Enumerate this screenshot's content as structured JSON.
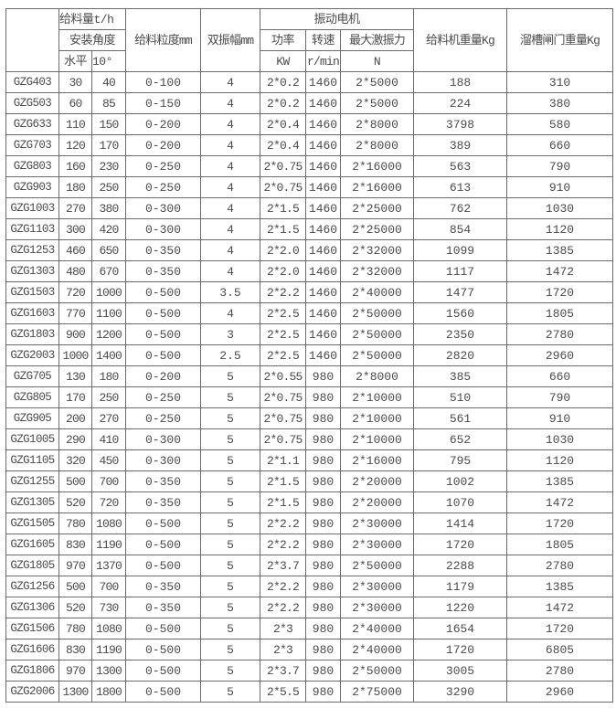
{
  "header": {
    "corner": "",
    "feed_rate": "给料量t/h",
    "install_angle": "安装角度",
    "horizontal": "水平",
    "ten_deg": "10°",
    "feed_size": "给料粒度mm",
    "amplitude": "双振幅mm",
    "motor": "振动电机",
    "power": "功率",
    "power_unit": "KW",
    "speed": "转速",
    "speed_unit": "r/min",
    "force": "最大激振力",
    "force_unit": "N",
    "feeder_weight": "给料机重量Kg",
    "gate_weight": "溜槽闸门重量Kg"
  },
  "rows": [
    [
      "GZG403",
      "30",
      "40",
      "0-100",
      "4",
      "2*0.2",
      "1460",
      "2*5000",
      "188",
      "310"
    ],
    [
      "GZG503",
      "60",
      "85",
      "0-150",
      "4",
      "2*0.2",
      "1460",
      "2*5000",
      "224",
      "380"
    ],
    [
      "GZG633",
      "110",
      "150",
      "0-200",
      "4",
      "2*0.4",
      "1460",
      "2*8000",
      "3798",
      "580"
    ],
    [
      "GZG703",
      "120",
      "170",
      "0-200",
      "4",
      "2*0.4",
      "1460",
      "2*8000",
      "389",
      "660"
    ],
    [
      "GZG803",
      "160",
      "230",
      "0-250",
      "4",
      "2*0.75",
      "1460",
      "2*16000",
      "563",
      "790"
    ],
    [
      "GZG903",
      "180",
      "250",
      "0-250",
      "4",
      "2*0.75",
      "1460",
      "2*16000",
      "613",
      "910"
    ],
    [
      "GZG1003",
      "270",
      "380",
      "0-300",
      "4",
      "2*1.5",
      "1460",
      "2*25000",
      "762",
      "1030"
    ],
    [
      "GZG1103",
      "300",
      "420",
      "0-300",
      "4",
      "2*1.5",
      "1460",
      "2*25000",
      "854",
      "1120"
    ],
    [
      "GZG1253",
      "460",
      "650",
      "0-350",
      "4",
      "2*2.0",
      "1460",
      "2*32000",
      "1099",
      "1385"
    ],
    [
      "GZG1303",
      "480",
      "670",
      "0-350",
      "4",
      "2*2.0",
      "1460",
      "2*32000",
      "1117",
      "1472"
    ],
    [
      "GZG1503",
      "720",
      "1000",
      "0-500",
      "3.5",
      "2*2.2",
      "1460",
      "2*40000",
      "1477",
      "1720"
    ],
    [
      "GZG1603",
      "770",
      "1100",
      "0-500",
      "4",
      "2*2.5",
      "1460",
      "2*50000",
      "1560",
      "1805"
    ],
    [
      "GZG1803",
      "900",
      "1200",
      "0-500",
      "3",
      "2*2.5",
      "1460",
      "2*50000",
      "2350",
      "2780"
    ],
    [
      "GZG2003",
      "1000",
      "1400",
      "0-500",
      "2.5",
      "2*2.5",
      "1460",
      "2*50000",
      "2820",
      "2960"
    ],
    [
      "GZG705",
      "130",
      "180",
      "0-200",
      "5",
      "2*0.55",
      "980",
      "2*8000",
      "385",
      "660"
    ],
    [
      "GZG805",
      "170",
      "250",
      "0-250",
      "5",
      "2*0.75",
      "980",
      "2*10000",
      "510",
      "790"
    ],
    [
      "GZG905",
      "200",
      "270",
      "0-250",
      "5",
      "2*0.75",
      "980",
      "2*10000",
      "561",
      "910"
    ],
    [
      "GZG1005",
      "290",
      "410",
      "0-300",
      "5",
      "2*0.75",
      "980",
      "2*10000",
      "652",
      "1030"
    ],
    [
      "GZG1105",
      "320",
      "450",
      "0-300",
      "5",
      "2*1.1",
      "980",
      "2*16000",
      "795",
      "1120"
    ],
    [
      "GZG1255",
      "500",
      "700",
      "0-350",
      "5",
      "2*1.5",
      "980",
      "2*20000",
      "1002",
      "1385"
    ],
    [
      "GZG1305",
      "520",
      "720",
      "0-350",
      "5",
      "2*1.5",
      "980",
      "2*20000",
      "1070",
      "1472"
    ],
    [
      "GZG1505",
      "780",
      "1080",
      "0-500",
      "5",
      "2*2.2",
      "980",
      "2*30000",
      "1414",
      "1720"
    ],
    [
      "GZG1605",
      "830",
      "1190",
      "0-500",
      "5",
      "2*2.2",
      "980",
      "2*30000",
      "1720",
      "1805"
    ],
    [
      "GZG1805",
      "970",
      "1370",
      "0-500",
      "5",
      "2*3.7",
      "980",
      "2*50000",
      "2288",
      "2780"
    ],
    [
      "GZG1256",
      "500",
      "700",
      "0-350",
      "5",
      "2*2.2",
      "980",
      "2*30000",
      "1179",
      "1385"
    ],
    [
      "GZG1306",
      "520",
      "730",
      "0-350",
      "5",
      "2*2.2",
      "980",
      "2*30000",
      "1220",
      "1472"
    ],
    [
      "GZG1506",
      "780",
      "1080",
      "0-500",
      "5",
      "2*3",
      "980",
      "2*40000",
      "1654",
      "1720"
    ],
    [
      "GZG1606",
      "830",
      "1190",
      "0-500",
      "5",
      "2*3",
      "980",
      "2*40000",
      "1720",
      "6805"
    ],
    [
      "GZG1806",
      "970",
      "1300",
      "0-500",
      "5",
      "2*3.7",
      "980",
      "2*50000",
      "3005",
      "2780"
    ],
    [
      "GZG2006",
      "1300",
      "1800",
      "0-500",
      "5",
      "2*5.5",
      "980",
      "2*75000",
      "3290",
      "2960"
    ]
  ]
}
